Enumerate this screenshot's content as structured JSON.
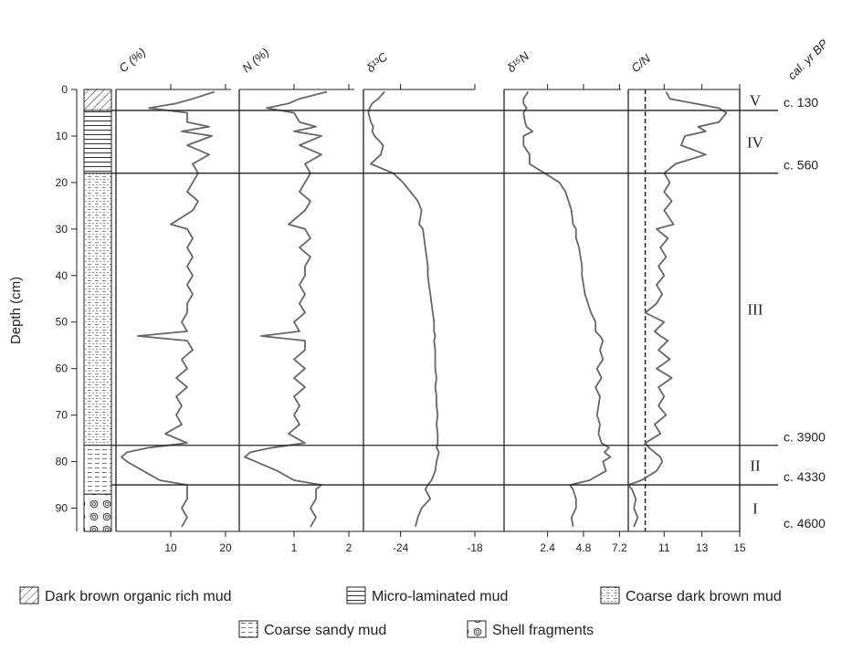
{
  "chart_data": {
    "type": "stratigraphy",
    "y_label": "Depth (cm)",
    "age_title": "cal. yr BP",
    "ylim": [
      0,
      95
    ],
    "yticks": [
      0,
      10,
      20,
      30,
      40,
      50,
      60,
      70,
      80,
      90
    ],
    "line_color": "#666666",
    "depth": [
      0.5,
      2,
      3,
      4,
      5,
      7,
      8,
      9,
      10,
      12,
      14,
      16,
      18,
      20,
      22,
      24,
      26,
      29,
      30,
      32,
      34,
      36,
      38,
      40,
      42,
      44,
      46,
      48,
      50,
      52,
      53,
      54,
      56,
      58,
      60,
      62,
      64,
      66,
      68,
      70,
      72,
      74,
      76,
      77,
      78,
      79,
      80,
      82,
      84,
      85,
      86,
      88,
      90,
      92,
      94
    ],
    "panels": [
      {
        "title": "C (%)",
        "xlim": [
          0,
          21
        ],
        "xticks": [
          10,
          20
        ],
        "values": [
          18,
          14,
          11,
          6,
          13,
          13,
          17,
          12,
          17.5,
          13,
          17,
          14,
          15,
          14,
          13,
          15,
          14,
          10,
          13,
          14,
          13,
          14,
          13,
          14,
          13,
          14,
          13,
          13,
          12,
          13,
          4,
          13,
          14,
          12,
          13,
          11,
          13,
          11,
          12,
          11,
          12,
          9,
          13,
          6,
          2,
          1,
          2,
          5,
          8,
          13,
          13,
          13,
          12,
          13,
          12
        ]
      },
      {
        "title": "N (%)",
        "xlim": [
          0,
          2.1
        ],
        "xticks": [
          1,
          2
        ],
        "values": [
          1.6,
          1.1,
          0.9,
          0.5,
          1.0,
          1.1,
          1.4,
          1.0,
          1.5,
          1.1,
          1.5,
          1.2,
          1.3,
          1.2,
          1.1,
          1.3,
          1.2,
          0.9,
          1.2,
          1.3,
          1.1,
          1.3,
          1.2,
          1.2,
          1.1,
          1.2,
          1.1,
          1.2,
          1.0,
          1.1,
          0.4,
          1.2,
          1.2,
          1.0,
          1.2,
          1.0,
          1.2,
          1.0,
          1.1,
          1.0,
          1.1,
          0.9,
          1.2,
          0.6,
          0.2,
          0.1,
          0.3,
          0.7,
          1.0,
          1.5,
          1.4,
          1.4,
          1.3,
          1.4,
          1.3
        ]
      },
      {
        "title": "δ¹³C",
        "xlim": [
          -27,
          -18
        ],
        "xticks": [
          -24,
          -18
        ],
        "values": [
          -25.3,
          -25.8,
          -26.3,
          -26.5,
          -26.6,
          -26.4,
          -26.2,
          -26.3,
          -26.1,
          -25.4,
          -25.6,
          -26.4,
          -24.6,
          -23.8,
          -23.2,
          -22.6,
          -22.3,
          -22.5,
          -22.2,
          -22.1,
          -22.0,
          -21.9,
          -21.8,
          -21.8,
          -21.7,
          -21.6,
          -21.5,
          -21.4,
          -21.3,
          -21.3,
          -21.2,
          -21.3,
          -21.2,
          -21.2,
          -21.2,
          -21.1,
          -21.2,
          -21.1,
          -21.1,
          -21.0,
          -21.1,
          -21.0,
          -21.0,
          -21.1,
          -20.9,
          -21.0,
          -21.1,
          -21.2,
          -21.5,
          -21.8,
          -22.0,
          -21.6,
          -22.3,
          -22.6,
          -22.8
        ]
      },
      {
        "title": "δ¹⁵N",
        "xlim": [
          -0.5,
          7.3
        ],
        "xticks": [
          2.4,
          4.8,
          7.2
        ],
        "values": [
          1.1,
          0.8,
          0.8,
          1.0,
          0.8,
          0.9,
          1.0,
          1.4,
          0.8,
          0.8,
          1.2,
          1.2,
          2.2,
          3.2,
          3.6,
          3.8,
          4.0,
          4.1,
          4.3,
          4.3,
          4.5,
          4.6,
          4.7,
          4.7,
          4.8,
          4.9,
          5.1,
          5.3,
          5.6,
          5.6,
          5.9,
          6.1,
          5.9,
          6.1,
          5.7,
          6.0,
          5.6,
          5.9,
          5.8,
          5.7,
          5.9,
          5.8,
          6.0,
          6.5,
          6.2,
          6.6,
          6.1,
          6.3,
          5.2,
          3.9,
          4.1,
          4.3,
          4.3,
          4.0,
          4.1
        ]
      },
      {
        "title": "C/N",
        "xlim": [
          9.1,
          15
        ],
        "xticks": [
          11,
          13,
          15
        ],
        "reference_line": 10,
        "values": [
          11.1,
          11.3,
          12.6,
          13.9,
          14.3,
          13.9,
          12.8,
          13.2,
          12.1,
          11.9,
          13.2,
          11.6,
          11.0,
          11.3,
          11.0,
          11.4,
          11.0,
          11.5,
          10.6,
          11.2,
          10.8,
          11.1,
          10.7,
          11.0,
          10.6,
          10.9,
          10.6,
          10.0,
          11.0,
          10.5,
          10.8,
          11.2,
          10.7,
          11.3,
          10.6,
          11.4,
          10.7,
          11.0,
          10.7,
          11.1,
          10.5,
          10.8,
          10.0,
          10.2,
          10.5,
          10.8,
          10.9,
          10.6,
          9.8,
          9.1,
          9.3,
          9.5,
          9.4,
          9.6,
          9.4
        ]
      }
    ],
    "zones": [
      {
        "label": "V",
        "top": 0,
        "bottom": 4.5
      },
      {
        "label": "IV",
        "top": 4.5,
        "bottom": 18
      },
      {
        "label": "III",
        "top": 18,
        "bottom": 76.5
      },
      {
        "label": "II",
        "top": 76.5,
        "bottom": 85
      },
      {
        "label": "I",
        "top": 85,
        "bottom": 95
      }
    ],
    "ages": [
      {
        "label": "c. 130",
        "depth": 4.5
      },
      {
        "label": "c. 560",
        "depth": 18
      },
      {
        "label": "c. 3900",
        "depth": 76.5
      },
      {
        "label": "c. 4330",
        "depth": 85
      },
      {
        "label": "c. 4600",
        "depth": 95
      }
    ],
    "lithology": [
      {
        "unit": 0,
        "top": 0,
        "bottom": 4.5
      },
      {
        "unit": 1,
        "top": 4.5,
        "bottom": 18
      },
      {
        "unit": 2,
        "top": 18,
        "bottom": 76.5
      },
      {
        "unit": 3,
        "top": 76.5,
        "bottom": 87
      },
      {
        "unit": 4,
        "top": 87,
        "bottom": 95
      }
    ],
    "legend": [
      {
        "label": "Dark brown organic rich mud"
      },
      {
        "label": "Micro-laminated mud"
      },
      {
        "label": "Coarse dark brown mud"
      },
      {
        "label": "Coarse sandy mud"
      },
      {
        "label": "Shell fragments"
      }
    ]
  }
}
